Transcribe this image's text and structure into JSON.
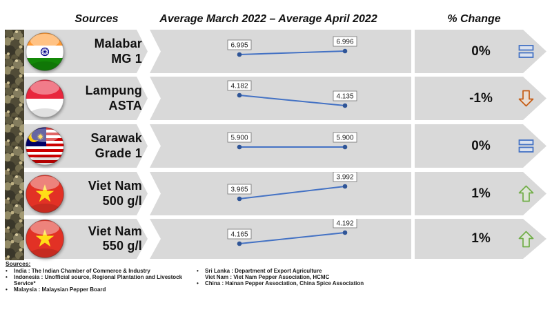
{
  "header": {
    "col_sources": "Sources",
    "col_chart": "Average March 2022 – Average April 2022",
    "col_change": "% Change"
  },
  "rows": [
    {
      "flag": "india",
      "flag_name": "india-flag",
      "name_line1": "Malabar",
      "name_line2": "MG 1",
      "value_march": "6.995",
      "value_april": "6.996",
      "pct": "0%",
      "trend": "flat"
    },
    {
      "flag": "indonesia",
      "flag_name": "indonesia-flag",
      "name_line1": "Lampung",
      "name_line2": "ASTA",
      "value_march": "4.182",
      "value_april": "4.135",
      "pct": "-1%",
      "trend": "down"
    },
    {
      "flag": "malaysia",
      "flag_name": "malaysia-flag",
      "name_line1": "Sarawak",
      "name_line2": "Grade 1",
      "value_march": "5.900",
      "value_april": "5.900",
      "pct": "0%",
      "trend": "flat"
    },
    {
      "flag": "vietnam",
      "flag_name": "vietnam-flag",
      "name_line1": "Viet Nam",
      "name_line2": "500 g/l",
      "value_march": "3.965",
      "value_april": "3.992",
      "pct": "1%",
      "trend": "up"
    },
    {
      "flag": "vietnam",
      "flag_name": "vietnam-flag",
      "name_line1": "Viet Nam",
      "name_line2": "550 g/l",
      "value_march": "4.165",
      "value_april": "4.192",
      "pct": "1%",
      "trend": "up"
    }
  ],
  "chart_data": {
    "type": "line",
    "title": "Average March 2022 – Average April 2022",
    "categories": [
      "Average March 2022",
      "Average April 2022"
    ],
    "series": [
      {
        "name": "Malabar MG 1",
        "values": [
          6.995,
          6.996
        ],
        "pct_change": "0%",
        "trend": "flat",
        "marker_y": [
          36,
          31
        ]
      },
      {
        "name": "Lampung ASTA",
        "values": [
          4.182,
          4.135
        ],
        "pct_change": "-1%",
        "trend": "down",
        "marker_y": [
          27,
          42
        ]
      },
      {
        "name": "Sarawak Grade 1",
        "values": [
          5.9,
          5.9
        ],
        "pct_change": "0%",
        "trend": "flat",
        "marker_y": [
          33,
          33
        ]
      },
      {
        "name": "Viet Nam 500 g/l",
        "values": [
          3.965,
          3.992
        ],
        "pct_change": "1%",
        "trend": "up",
        "marker_y": [
          39,
          21
        ]
      },
      {
        "name": "Viet Nam 550 g/l",
        "values": [
          4.165,
          4.192
        ],
        "pct_change": "1%",
        "trend": "up",
        "marker_y": [
          36,
          20
        ]
      }
    ],
    "layout": {
      "grid": false,
      "axes_visible": false,
      "data_labels": true,
      "axis_autoscaled_per_row": true,
      "legend": "none"
    }
  },
  "footer": {
    "label": "Sources:",
    "left_items": [
      {
        "bullet": true,
        "text": "India : The Indian Chamber of Commerce & Industry"
      },
      {
        "bullet": true,
        "text": "Indonesia : Unofficial source, Regional Plantation and Livestock Service*"
      },
      {
        "bullet": true,
        "text": "Malaysia : Malaysian Pepper Board"
      }
    ],
    "right_items": [
      {
        "bullet": true,
        "text": "Sri Lanka : Department of Export Agriculture"
      },
      {
        "bullet": false,
        "text": "Viet Nam : Viet Nam Pepper Association, HCMC"
      },
      {
        "bullet": true,
        "text": "China : Hainan Pepper Association, China Spice Association"
      }
    ]
  },
  "colors": {
    "band": "#d9d9d9",
    "line": "#4472c4",
    "marker": "#2f5597",
    "label_border": "#7f7f7f",
    "up_arrow": "#70ad47",
    "down_arrow": "#c55a11",
    "equal_icon": "#4472c4"
  }
}
